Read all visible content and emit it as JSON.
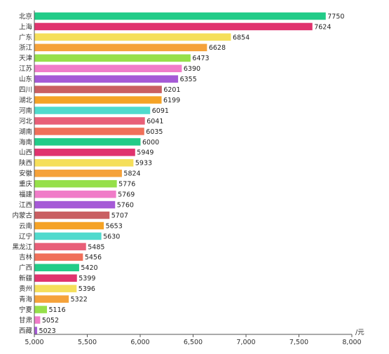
{
  "chart_data": {
    "type": "bar",
    "orientation": "horizontal",
    "categories": [
      "北京",
      "上海",
      "广东",
      "浙江",
      "天津",
      "江苏",
      "山东",
      "四川",
      "湖北",
      "河南",
      "河北",
      "湖南",
      "海南",
      "山西",
      "陕西",
      "安徽",
      "重庆",
      "福建",
      "江西",
      "内蒙古",
      "云南",
      "辽宁",
      "黑龙江",
      "吉林",
      "广西",
      "新疆",
      "贵州",
      "青海",
      "宁夏",
      "甘肃",
      "西藏"
    ],
    "values": [
      7750,
      7624,
      6854,
      6628,
      6473,
      6390,
      6355,
      6201,
      6199,
      6091,
      6041,
      6035,
      6000,
      5949,
      5933,
      5824,
      5776,
      5769,
      5760,
      5707,
      5653,
      5630,
      5485,
      5456,
      5420,
      5399,
      5396,
      5322,
      5116,
      5052,
      5023
    ],
    "value_labels": [
      "7750",
      "7624",
      "6854",
      "6628",
      "6473",
      "6390",
      "6355",
      "6201",
      "6199",
      "6091",
      "6041",
      "6035",
      "6000",
      "5949",
      "5933",
      "5824",
      "5776",
      "5769",
      "5760",
      "5707",
      "5653",
      "5630",
      "5485",
      "5456",
      "5420",
      "5399",
      "5396",
      "5322",
      "5116",
      "5052",
      "5023"
    ],
    "colors": [
      "#22cc88",
      "#e0336e",
      "#f5df5a",
      "#f5a23a",
      "#96e04a",
      "#f07cc8",
      "#a55ad6",
      "#c95f62",
      "#f5a326",
      "#50dacd",
      "#e85f78",
      "#f0705a",
      "#22cc88",
      "#e0336e",
      "#f5df5a",
      "#f5a23a",
      "#96e04a",
      "#f07cc8",
      "#a55ad6",
      "#c95f62",
      "#f5a326",
      "#50dacd",
      "#e85f78",
      "#f0705a",
      "#22cc88",
      "#e0336e",
      "#f5df5a",
      "#f5a23a",
      "#96e04a",
      "#f07cc8",
      "#a55ad6"
    ],
    "xlim": [
      5000,
      8000
    ],
    "x_ticks": [
      5000,
      5500,
      6000,
      6500,
      7000,
      7500,
      8000
    ],
    "x_tick_labels": [
      "5,000",
      "5,500",
      "6,000",
      "6,500",
      "7,000",
      "7,500",
      "8,000"
    ],
    "x_unit": "/元",
    "title": "",
    "xlabel": "",
    "ylabel": "",
    "grid": false,
    "legend": "none"
  }
}
